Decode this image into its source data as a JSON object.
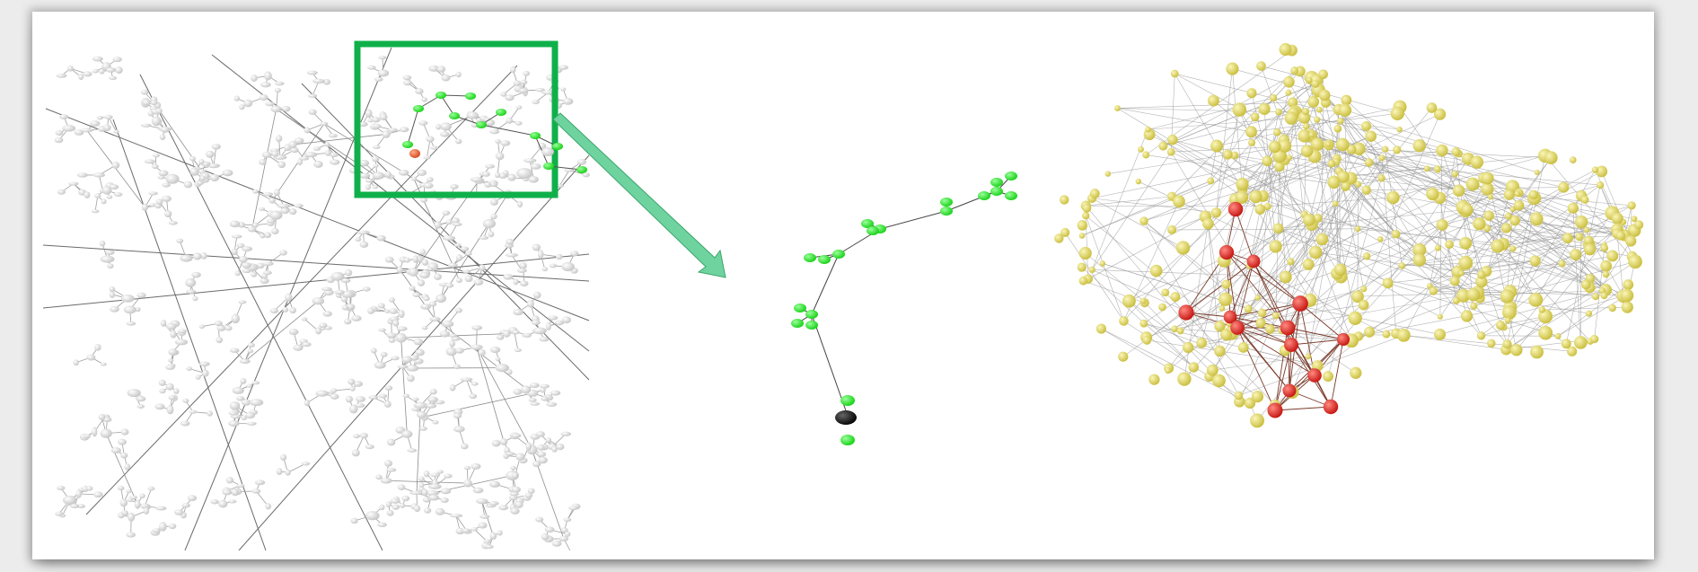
{
  "panels": [
    {
      "id": "full-network",
      "node_color": "#e2e2e2",
      "edge_color": "#555555"
    },
    {
      "id": "subtree-zoom",
      "node_color": "#22ee22",
      "root_color": "#000000",
      "edge_color": "#444444"
    },
    {
      "id": "community-graph",
      "node_color": "#e2d96a",
      "highlight_color": "#e0201c",
      "edge_color": "#9a9a9a"
    }
  ],
  "highlight_box": {
    "color": "#0fb04a"
  },
  "callout_arrow": {
    "color": "#6fd3a0"
  },
  "zoom_subtree": {
    "orange_node_color": "#e35a2a"
  }
}
